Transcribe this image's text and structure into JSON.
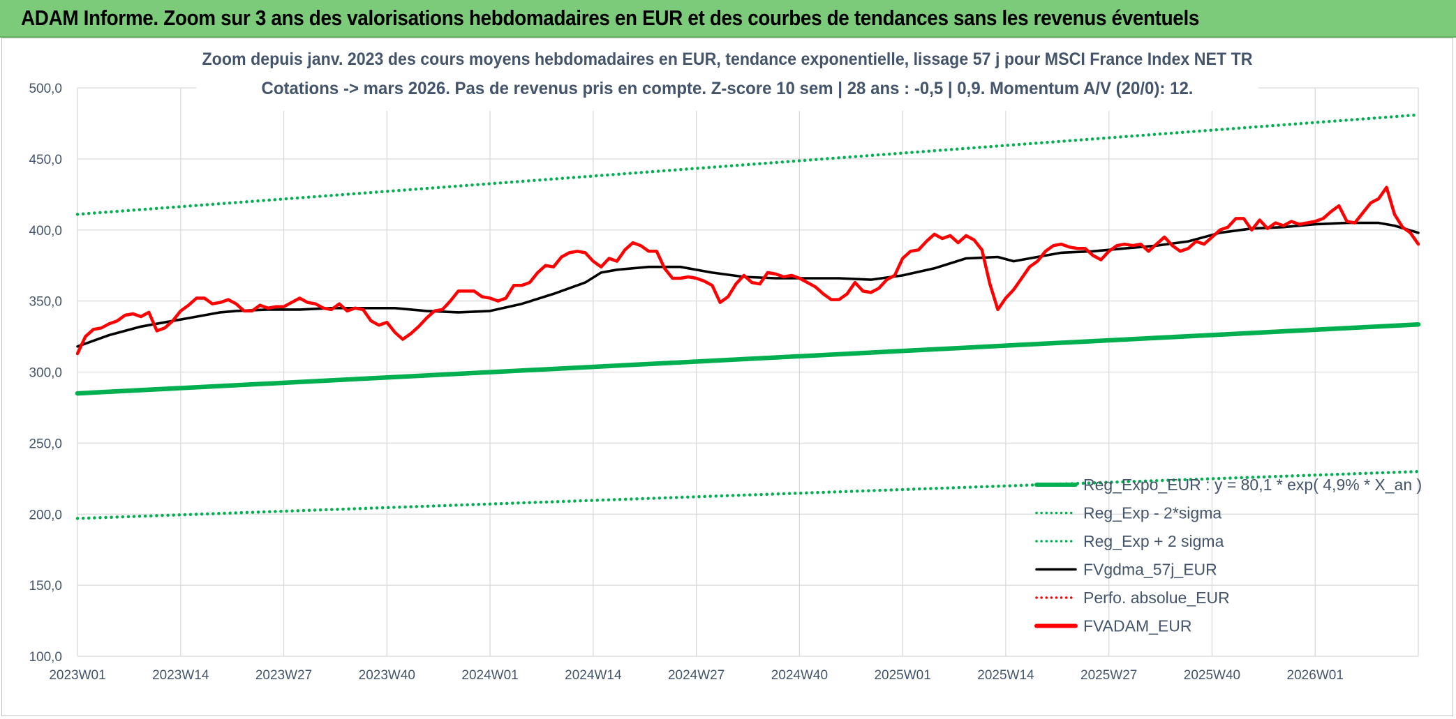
{
  "header": {
    "title": "ADAM Informe. Zoom sur 3 ans des valorisations hebdomadaires en EUR et des courbes de tendances sans les revenus éventuels"
  },
  "colors": {
    "header_bg": "#7ccb7a",
    "regression": "#00b050",
    "smoothing": "#000000",
    "price": "#ff0000",
    "text": "#44546a",
    "grid": "#d9d9d9"
  },
  "chart_data": {
    "type": "line",
    "title_lines": [
      "Zoom depuis janv. 2023 des cours moyens hebdomadaires en EUR, tendance exponentielle, lissage 57 j pour MSCI France Index NET TR",
      "Cotations -> mars 2026. Pas de revenus pris en compte. Z-score 10 sem | 28 ans : -0,5 | 0,9. Momentum A/V (20/0): 12."
    ],
    "ylim": [
      100,
      500
    ],
    "y_ticks": [
      "100,0",
      "150,0",
      "200,0",
      "250,0",
      "300,0",
      "350,0",
      "400,0",
      "450,0",
      "500,0"
    ],
    "x_ticks": [
      "2023W01",
      "2023W14",
      "2023W27",
      "2023W40",
      "2024W01",
      "2024W14",
      "2024W27",
      "2024W40",
      "2025W01",
      "2025W14",
      "2025W27",
      "2025W40",
      "2026W01"
    ],
    "x_tick_positions": [
      0,
      13,
      26,
      39,
      52,
      65,
      78,
      91,
      104,
      117,
      130,
      143,
      156
    ],
    "week_count": 170,
    "grid": true,
    "legend_position": "bottom-right",
    "legend": [
      {
        "label": "Reg_Expo_EUR : y = 80,1 * exp( 4,9% *  X_an )",
        "color": "#00b050",
        "style": "thick"
      },
      {
        "label": "Reg_Exp - 2*sigma",
        "color": "#00b050",
        "style": "dotted"
      },
      {
        "label": "Reg_Exp + 2 sigma",
        "color": "#00b050",
        "style": "dotted"
      },
      {
        "label": "FVgdma_57j_EUR",
        "color": "#000000",
        "style": "solid"
      },
      {
        "label": "Perfo. absolue_EUR",
        "color": "#ff0000",
        "style": "dotted"
      },
      {
        "label": "FVADAM_EUR",
        "color": "#ff0000",
        "style": "thick"
      }
    ],
    "series": [
      {
        "name": "Reg_Expo_EUR",
        "x": [
          0,
          169
        ],
        "values": [
          285,
          333.5
        ]
      },
      {
        "name": "Reg_Exp - 2*sigma",
        "x": [
          0,
          169
        ],
        "values": [
          197,
          230
        ]
      },
      {
        "name": "Reg_Exp + 2 sigma",
        "x": [
          0,
          169
        ],
        "values": [
          411,
          481
        ]
      },
      {
        "name": "FVgdma_57j_EUR",
        "x": [
          0,
          2,
          4,
          6,
          8,
          10,
          12,
          14,
          16,
          18,
          20,
          24,
          28,
          32,
          36,
          40,
          44,
          48,
          52,
          56,
          60,
          64,
          66,
          68,
          72,
          76,
          80,
          84,
          88,
          92,
          96,
          100,
          104,
          108,
          112,
          116,
          118,
          120,
          124,
          128,
          132,
          136,
          140,
          144,
          148,
          152,
          156,
          160,
          164,
          166,
          169
        ],
        "values": [
          318,
          322,
          326,
          329,
          332,
          334,
          336,
          338,
          340,
          342,
          343,
          344,
          344,
          345,
          345,
          345,
          343,
          342,
          343,
          348,
          355,
          363,
          370,
          372,
          374,
          374,
          370,
          367,
          366,
          366,
          366,
          365,
          368,
          373,
          380,
          381,
          378,
          380,
          384,
          385,
          387,
          389,
          392,
          398,
          401,
          402,
          404,
          405,
          405,
          403,
          398
        ]
      },
      {
        "name": "FVADAM_EUR",
        "x": [
          0,
          1,
          2,
          3,
          4,
          5,
          6,
          7,
          8,
          9,
          10,
          11,
          12,
          13,
          14,
          15,
          16,
          17,
          18,
          19,
          20,
          21,
          22,
          23,
          24,
          25,
          26,
          27,
          28,
          29,
          30,
          31,
          32,
          33,
          34,
          35,
          36,
          37,
          38,
          39,
          40,
          41,
          42,
          43,
          44,
          45,
          46,
          47,
          48,
          49,
          50,
          51,
          52,
          53,
          54,
          55,
          56,
          57,
          58,
          59,
          60,
          61,
          62,
          63,
          64,
          65,
          66,
          67,
          68,
          69,
          70,
          71,
          72,
          73,
          74,
          75,
          76,
          77,
          78,
          79,
          80,
          81,
          82,
          83,
          84,
          85,
          86,
          87,
          88,
          89,
          90,
          91,
          92,
          93,
          94,
          95,
          96,
          97,
          98,
          99,
          100,
          101,
          102,
          103,
          104,
          105,
          106,
          107,
          108,
          109,
          110,
          111,
          112,
          113,
          114,
          115,
          116,
          117,
          118,
          119,
          120,
          121,
          122,
          123,
          124,
          125,
          126,
          127,
          128,
          129,
          130,
          131,
          132,
          133,
          134,
          135,
          136,
          137,
          138,
          139,
          140,
          141,
          142,
          143,
          144,
          145,
          146,
          147,
          148,
          149,
          150,
          151,
          152,
          153,
          154,
          155,
          156,
          157,
          158,
          159,
          160,
          161,
          162,
          163,
          164,
          165,
          166,
          167,
          168,
          169
        ],
        "values": [
          313,
          325,
          330,
          331,
          334,
          336,
          340,
          341,
          339,
          342,
          329,
          331,
          336,
          343,
          347,
          352,
          352,
          348,
          349,
          351,
          348,
          343,
          343,
          347,
          345,
          346,
          346,
          349,
          352,
          349,
          348,
          345,
          344,
          348,
          343,
          345,
          344,
          336,
          333,
          335,
          328,
          323,
          327,
          332,
          338,
          343,
          344,
          350,
          357,
          357,
          357,
          353,
          352,
          350,
          352,
          361,
          361,
          363,
          370,
          375,
          374,
          381,
          384,
          385,
          384,
          378,
          374,
          380,
          378,
          386,
          391,
          389,
          385,
          385,
          373,
          366,
          366,
          367,
          366,
          364,
          361,
          349,
          353,
          362,
          368,
          363,
          362,
          370,
          369,
          367,
          368,
          366,
          363,
          360,
          355,
          351,
          351,
          355,
          363,
          357,
          356,
          359,
          365,
          368,
          380,
          385,
          386,
          392,
          397,
          394,
          396,
          391,
          396,
          393,
          386,
          362,
          344,
          352,
          358,
          366,
          374,
          378,
          385,
          389,
          390,
          388,
          387,
          387,
          382,
          379,
          385,
          389,
          390,
          389,
          390,
          385,
          390,
          395,
          389,
          385,
          387,
          392,
          390,
          395,
          400,
          402,
          408,
          408,
          400,
          407,
          401,
          405,
          403,
          406,
          404,
          405,
          406,
          408,
          413,
          417,
          406,
          405,
          412,
          419,
          422,
          430,
          411,
          402,
          398,
          390
        ]
      }
    ]
  }
}
